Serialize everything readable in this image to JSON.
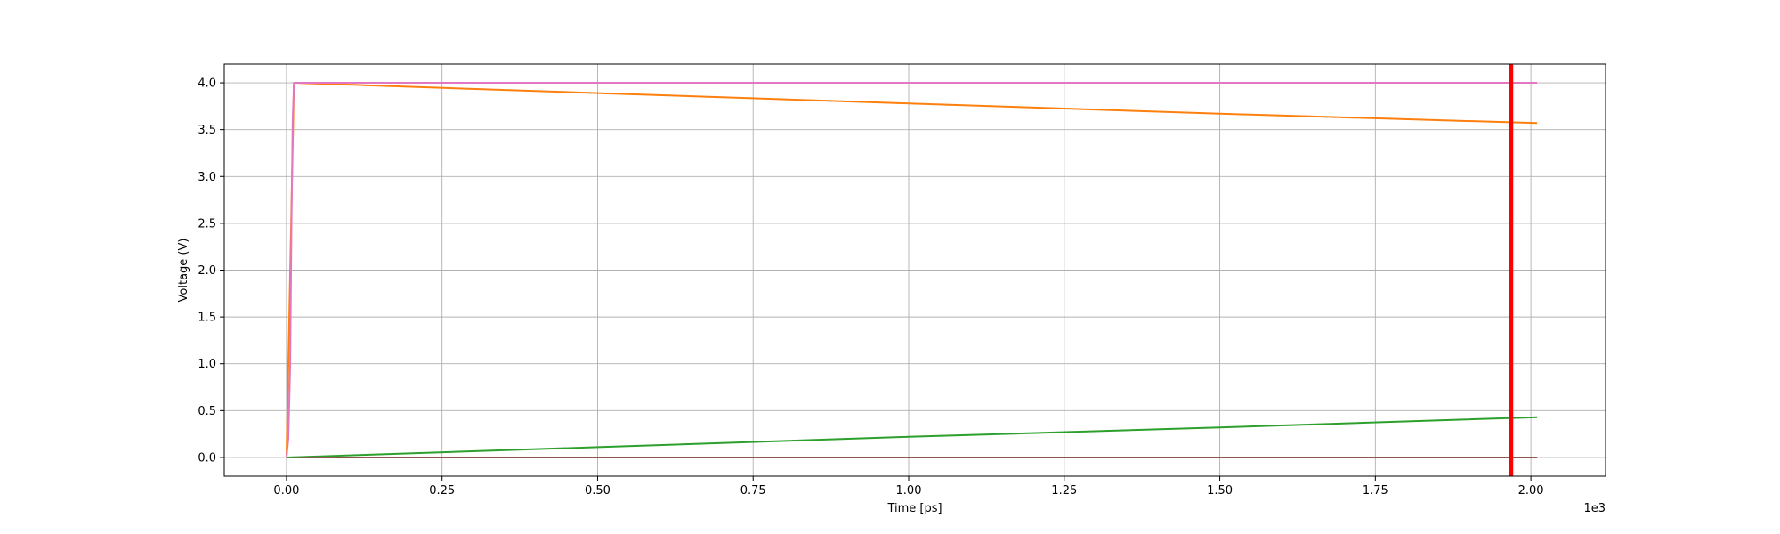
{
  "chart_data": {
    "type": "line",
    "title": "",
    "xlabel": "Time [ps]",
    "ylabel": "Voltage (V)",
    "x_offset_label": "1e3",
    "xlim": [
      -0.1,
      2.12
    ],
    "ylim": [
      -0.2,
      4.2
    ],
    "x_ticks": [
      0.0,
      0.25,
      0.5,
      0.75,
      1.0,
      1.25,
      1.5,
      1.75,
      2.0
    ],
    "x_tick_labels": [
      "0.00",
      "0.25",
      "0.50",
      "0.75",
      "1.00",
      "1.25",
      "1.50",
      "1.75",
      "2.00"
    ],
    "y_ticks": [
      0.0,
      0.5,
      1.0,
      1.5,
      2.0,
      2.5,
      3.0,
      3.5,
      4.0
    ],
    "y_tick_labels": [
      "0.0",
      "0.5",
      "1.0",
      "1.5",
      "2.0",
      "2.5",
      "3.0",
      "3.5",
      "4.0"
    ],
    "grid": true,
    "legend": "none",
    "series": [
      {
        "color": "#d62728",
        "x": [
          0.0,
          2.01
        ],
        "y": [
          0.0,
          0.0
        ]
      },
      {
        "color": "#8c564b",
        "x": [
          0.0,
          2.01
        ],
        "y": [
          0.0,
          0.0
        ]
      },
      {
        "color": "#2ca02c",
        "x": [
          0.0,
          0.5,
          1.0,
          1.5,
          2.01
        ],
        "y": [
          0.0,
          0.11,
          0.22,
          0.32,
          0.43
        ]
      },
      {
        "color": "#ff7f0e",
        "x": [
          0.0,
          0.012,
          0.5,
          1.0,
          1.5,
          2.01
        ],
        "y": [
          0.0,
          4.0,
          3.89,
          3.78,
          3.67,
          3.57
        ]
      },
      {
        "color": "#e377c2",
        "x": [
          0.0,
          0.003,
          0.006,
          0.008,
          0.01,
          0.012,
          2.01
        ],
        "y": [
          0.0,
          0.2,
          1.0,
          2.5,
          3.6,
          4.0,
          4.0
        ]
      }
    ],
    "marker_line": {
      "x": 1.968,
      "color": "#ff0000"
    }
  }
}
